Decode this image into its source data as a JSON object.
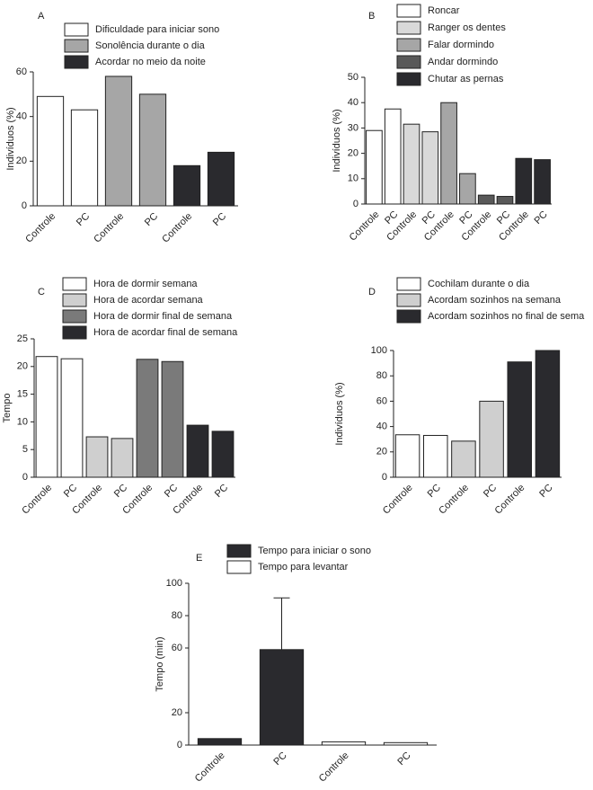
{
  "chart_data": [
    {
      "type": "bar",
      "label": "A",
      "ylabel": "Indivíduos (%)",
      "categories": [
        "Controle",
        "PC",
        "Controle",
        "PC",
        "Controle",
        "PC"
      ],
      "series": [
        {
          "name": "Dificuldade para iniciar sono",
          "color": "#ffffff",
          "values": [
            49,
            43,
            null,
            null,
            null,
            null
          ]
        },
        {
          "name": "Sonolência durante o dia",
          "color": "#a6a6a6",
          "values": [
            null,
            null,
            58,
            50,
            null,
            null
          ]
        },
        {
          "name": "Acordar no meio da noite",
          "color": "#2a2a2e",
          "values": [
            null,
            null,
            null,
            null,
            18,
            24
          ]
        }
      ],
      "ylim": [
        0,
        60
      ],
      "yticks": [
        0,
        20,
        40,
        60
      ]
    },
    {
      "type": "bar",
      "label": "B",
      "ylabel": "Indivíduos (%)",
      "categories": [
        "Controle",
        "PC",
        "Controle",
        "PC",
        "Controle",
        "PC",
        "Controle",
        "PC",
        "Controle",
        "PC"
      ],
      "series": [
        {
          "name": "Roncar",
          "color": "#ffffff",
          "values": [
            29,
            37.5,
            null,
            null,
            null,
            null,
            null,
            null,
            null,
            null
          ]
        },
        {
          "name": "Ranger os dentes",
          "color": "#d9d9d9",
          "values": [
            null,
            null,
            31.5,
            28.5,
            null,
            null,
            null,
            null,
            null,
            null
          ]
        },
        {
          "name": "Falar dormindo",
          "color": "#a6a6a6",
          "values": [
            null,
            null,
            null,
            null,
            40,
            12,
            null,
            null,
            null,
            null
          ]
        },
        {
          "name": "Andar dormindo",
          "color": "#595959",
          "values": [
            null,
            null,
            null,
            null,
            null,
            null,
            3.5,
            3,
            null,
            null
          ]
        },
        {
          "name": "Chutar as pernas",
          "color": "#2a2a2e",
          "values": [
            null,
            null,
            null,
            null,
            null,
            null,
            null,
            null,
            18,
            17.5
          ]
        }
      ],
      "ylim": [
        0,
        50
      ],
      "yticks": [
        0,
        10,
        20,
        30,
        40,
        50
      ]
    },
    {
      "type": "bar",
      "label": "C",
      "ylabel": "Tempo",
      "categories": [
        "Controle",
        "PC",
        "Controle",
        "PC",
        "Controle",
        "PC",
        "Controle",
        "PC"
      ],
      "series": [
        {
          "name": "Hora de dormir semana",
          "color": "#ffffff",
          "values": [
            21.8,
            21.4,
            null,
            null,
            null,
            null,
            null,
            null
          ]
        },
        {
          "name": "Hora de acordar semana",
          "color": "#cfcfcf",
          "values": [
            null,
            null,
            7.3,
            7,
            null,
            null,
            null,
            null
          ]
        },
        {
          "name": "Hora de dormir final de semana",
          "color": "#7a7a7a",
          "values": [
            null,
            null,
            null,
            null,
            21.3,
            20.9,
            null,
            null
          ]
        },
        {
          "name": "Hora de acordar final de semana",
          "color": "#2a2a2e",
          "values": [
            null,
            null,
            null,
            null,
            null,
            null,
            9.4,
            8.3
          ]
        }
      ],
      "ylim": [
        0,
        25
      ],
      "yticks": [
        0,
        5,
        10,
        15,
        20,
        25
      ]
    },
    {
      "type": "bar",
      "label": "D",
      "ylabel": "Indivíduos (%)",
      "categories": [
        "Controle",
        "PC",
        "Controle",
        "PC",
        "Controle",
        "PC"
      ],
      "series": [
        {
          "name": "Cochilam durante o dia",
          "color": "#ffffff",
          "values": [
            33.5,
            33,
            null,
            null,
            null,
            null
          ]
        },
        {
          "name": "Acordam sozinhos na semana",
          "color": "#cfcfcf",
          "values": [
            null,
            null,
            28.5,
            60,
            null,
            null
          ]
        },
        {
          "name": "Acordam sozinhos no final de sema",
          "color": "#2a2a2e",
          "values": [
            null,
            null,
            null,
            null,
            91,
            100
          ]
        }
      ],
      "ylim": [
        0,
        100
      ],
      "yticks": [
        0,
        20,
        40,
        60,
        80,
        100
      ]
    },
    {
      "type": "bar",
      "label": "E",
      "ylabel": "Tempo (min)",
      "categories": [
        "Controle",
        "PC",
        "Controle",
        "PC"
      ],
      "series": [
        {
          "name": "Tempo para iniciar o sono",
          "color": "#2a2a2e",
          "values": [
            4,
            59,
            null,
            null
          ],
          "errors": [
            null,
            32,
            null,
            null
          ]
        },
        {
          "name": "Tempo para levantar",
          "color": "#ffffff",
          "values": [
            null,
            null,
            2,
            1.5
          ]
        }
      ],
      "ylim": [
        0,
        100
      ],
      "yticks": [
        0,
        20,
        60,
        80,
        100
      ]
    }
  ]
}
